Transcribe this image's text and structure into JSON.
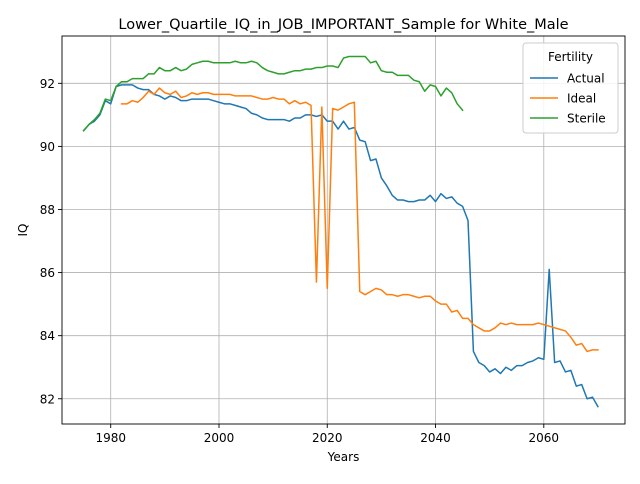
{
  "chart_data": {
    "type": "line",
    "title": "Lower_Quartile_IQ_in_JOB_IMPORTANT_Sample for White_Male",
    "xlabel": "Years",
    "ylabel": "IQ",
    "xlim": [
      1971,
      2075
    ],
    "ylim": [
      81.2,
      93.5
    ],
    "xticks": [
      1980,
      2000,
      2020,
      2040,
      2060
    ],
    "yticks": [
      82,
      84,
      86,
      88,
      90,
      92
    ],
    "grid": true,
    "legend": {
      "title": "Fertility",
      "position": "top-right"
    },
    "series": [
      {
        "name": "Actual",
        "color": "#1f77b4",
        "x": [
          1975,
          1976,
          1977,
          1978,
          1979,
          1980,
          1981,
          1982,
          1983,
          1984,
          1985,
          1986,
          1987,
          1988,
          1989,
          1990,
          1991,
          1992,
          1993,
          1994,
          1995,
          1996,
          1997,
          1998,
          1999,
          2000,
          2001,
          2002,
          2003,
          2004,
          2005,
          2006,
          2007,
          2008,
          2009,
          2010,
          2011,
          2012,
          2013,
          2014,
          2015,
          2016,
          2017,
          2018,
          2019,
          2020,
          2021,
          2022,
          2023,
          2024,
          2025,
          2026,
          2027,
          2028,
          2029,
          2030,
          2031,
          2032,
          2033,
          2034,
          2035,
          2036,
          2037,
          2038,
          2039,
          2040,
          2041,
          2042,
          2043,
          2044,
          2045,
          2046,
          2047,
          2048,
          2049,
          2050,
          2051,
          2052,
          2053,
          2054,
          2055,
          2056,
          2057,
          2058,
          2059,
          2060,
          2061,
          2062,
          2063,
          2064,
          2065,
          2066,
          2067,
          2068,
          2069,
          2070
        ],
        "y": [
          90.5,
          90.7,
          90.8,
          91.0,
          91.45,
          91.35,
          91.9,
          91.95,
          91.95,
          91.95,
          91.85,
          91.8,
          91.8,
          91.65,
          91.6,
          91.5,
          91.6,
          91.55,
          91.45,
          91.45,
          91.5,
          91.5,
          91.5,
          91.5,
          91.45,
          91.4,
          91.35,
          91.35,
          91.3,
          91.25,
          91.2,
          91.05,
          91.0,
          90.9,
          90.85,
          90.85,
          90.85,
          90.85,
          90.8,
          90.9,
          90.9,
          91.0,
          91.0,
          90.95,
          91.0,
          90.8,
          90.8,
          90.55,
          90.8,
          90.55,
          90.6,
          90.2,
          90.15,
          89.55,
          89.6,
          89.0,
          88.75,
          88.45,
          88.3,
          88.3,
          88.25,
          88.25,
          88.3,
          88.3,
          88.45,
          88.25,
          88.5,
          88.35,
          88.4,
          88.2,
          88.1,
          87.65,
          83.5,
          83.15,
          83.05,
          82.85,
          82.95,
          82.8,
          83.0,
          82.9,
          83.05,
          83.05,
          83.15,
          83.2,
          83.3,
          83.25,
          86.1,
          83.15,
          83.2,
          82.85,
          82.9,
          82.4,
          82.45,
          82.0,
          82.05,
          81.75
        ]
      },
      {
        "name": "Ideal",
        "color": "#ff7f0e",
        "x": [
          1982,
          1983,
          1984,
          1985,
          1986,
          1987,
          1988,
          1989,
          1990,
          1991,
          1992,
          1993,
          1994,
          1995,
          1996,
          1997,
          1998,
          1999,
          2000,
          2001,
          2002,
          2003,
          2004,
          2005,
          2006,
          2007,
          2008,
          2009,
          2010,
          2011,
          2012,
          2013,
          2014,
          2015,
          2016,
          2017,
          2018,
          2019,
          2020,
          2021,
          2022,
          2023,
          2024,
          2025,
          2026,
          2027,
          2028,
          2029,
          2030,
          2031,
          2032,
          2033,
          2034,
          2035,
          2036,
          2037,
          2038,
          2039,
          2040,
          2041,
          2042,
          2043,
          2044,
          2045,
          2046,
          2047,
          2048,
          2049,
          2050,
          2051,
          2052,
          2053,
          2054,
          2055,
          2056,
          2057,
          2058,
          2059,
          2060,
          2061,
          2062,
          2063,
          2064,
          2065,
          2066,
          2067,
          2068,
          2069,
          2070
        ],
        "y": [
          91.35,
          91.35,
          91.45,
          91.4,
          91.55,
          91.75,
          91.65,
          91.85,
          91.7,
          91.65,
          91.75,
          91.55,
          91.6,
          91.7,
          91.65,
          91.7,
          91.7,
          91.65,
          91.65,
          91.65,
          91.65,
          91.6,
          91.6,
          91.6,
          91.6,
          91.55,
          91.5,
          91.5,
          91.55,
          91.5,
          91.5,
          91.35,
          91.45,
          91.35,
          91.4,
          91.3,
          85.7,
          91.25,
          85.5,
          91.2,
          91.15,
          91.25,
          91.35,
          91.4,
          85.4,
          85.3,
          85.4,
          85.5,
          85.45,
          85.3,
          85.3,
          85.25,
          85.3,
          85.3,
          85.25,
          85.2,
          85.25,
          85.25,
          85.1,
          85.0,
          85.0,
          84.75,
          84.8,
          84.55,
          84.55,
          84.35,
          84.25,
          84.15,
          84.15,
          84.25,
          84.4,
          84.35,
          84.4,
          84.35,
          84.35,
          84.35,
          84.35,
          84.4,
          84.35,
          84.3,
          84.25,
          84.2,
          84.15,
          83.95,
          83.7,
          83.75,
          83.5,
          83.55,
          83.55
        ]
      },
      {
        "name": "Sterile",
        "color": "#2ca02c",
        "x": [
          1975,
          1976,
          1977,
          1978,
          1979,
          1980,
          1981,
          1982,
          1983,
          1984,
          1985,
          1986,
          1987,
          1988,
          1989,
          1990,
          1991,
          1992,
          1993,
          1994,
          1995,
          1996,
          1997,
          1998,
          1999,
          2000,
          2001,
          2002,
          2003,
          2004,
          2005,
          2006,
          2007,
          2008,
          2009,
          2010,
          2011,
          2012,
          2013,
          2014,
          2015,
          2016,
          2017,
          2018,
          2019,
          2020,
          2021,
          2022,
          2023,
          2024,
          2025,
          2026,
          2027,
          2028,
          2029,
          2030,
          2031,
          2032,
          2033,
          2034,
          2035,
          2036,
          2037,
          2038,
          2039,
          2040,
          2041,
          2042,
          2043,
          2044,
          2045
        ],
        "y": [
          90.5,
          90.7,
          90.85,
          91.05,
          91.5,
          91.45,
          91.9,
          92.05,
          92.05,
          92.15,
          92.15,
          92.15,
          92.3,
          92.3,
          92.5,
          92.4,
          92.4,
          92.5,
          92.4,
          92.45,
          92.6,
          92.65,
          92.7,
          92.7,
          92.65,
          92.65,
          92.65,
          92.65,
          92.7,
          92.65,
          92.65,
          92.7,
          92.65,
          92.5,
          92.4,
          92.35,
          92.3,
          92.3,
          92.35,
          92.4,
          92.4,
          92.45,
          92.45,
          92.5,
          92.5,
          92.55,
          92.55,
          92.5,
          92.8,
          92.85,
          92.85,
          92.85,
          92.85,
          92.65,
          92.7,
          92.4,
          92.35,
          92.35,
          92.25,
          92.25,
          92.25,
          92.1,
          92.05,
          91.75,
          91.95,
          91.9,
          91.6,
          91.85,
          91.7,
          91.35,
          91.15
        ]
      }
    ]
  }
}
